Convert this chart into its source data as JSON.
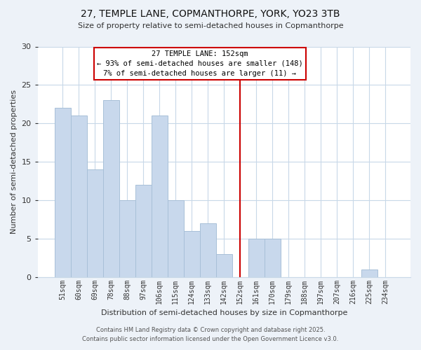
{
  "title": "27, TEMPLE LANE, COPMANTHORPE, YORK, YO23 3TB",
  "subtitle": "Size of property relative to semi-detached houses in Copmanthorpe",
  "xlabel": "Distribution of semi-detached houses by size in Copmanthorpe",
  "ylabel": "Number of semi-detached properties",
  "categories": [
    "51sqm",
    "60sqm",
    "69sqm",
    "78sqm",
    "88sqm",
    "97sqm",
    "106sqm",
    "115sqm",
    "124sqm",
    "133sqm",
    "142sqm",
    "152sqm",
    "161sqm",
    "170sqm",
    "179sqm",
    "188sqm",
    "197sqm",
    "207sqm",
    "216sqm",
    "225sqm",
    "234sqm"
  ],
  "values": [
    22,
    21,
    14,
    23,
    10,
    12,
    21,
    10,
    6,
    7,
    3,
    0,
    5,
    5,
    0,
    0,
    0,
    0,
    0,
    1,
    0
  ],
  "bar_color": "#c8d8ec",
  "bar_edge_color": "#a8c0d8",
  "vline_color": "#cc0000",
  "annotation_title": "27 TEMPLE LANE: 152sqm",
  "annotation_line1": "← 93% of semi-detached houses are smaller (148)",
  "annotation_line2": "7% of semi-detached houses are larger (11) →",
  "ylim": [
    0,
    30
  ],
  "yticks": [
    0,
    5,
    10,
    15,
    20,
    25,
    30
  ],
  "footer1": "Contains HM Land Registry data © Crown copyright and database right 2025.",
  "footer2": "Contains public sector information licensed under the Open Government Licence v3.0.",
  "bg_color": "#edf2f8",
  "plot_bg_color": "#ffffff",
  "grid_color": "#c8d8e8",
  "vline_index": 11
}
